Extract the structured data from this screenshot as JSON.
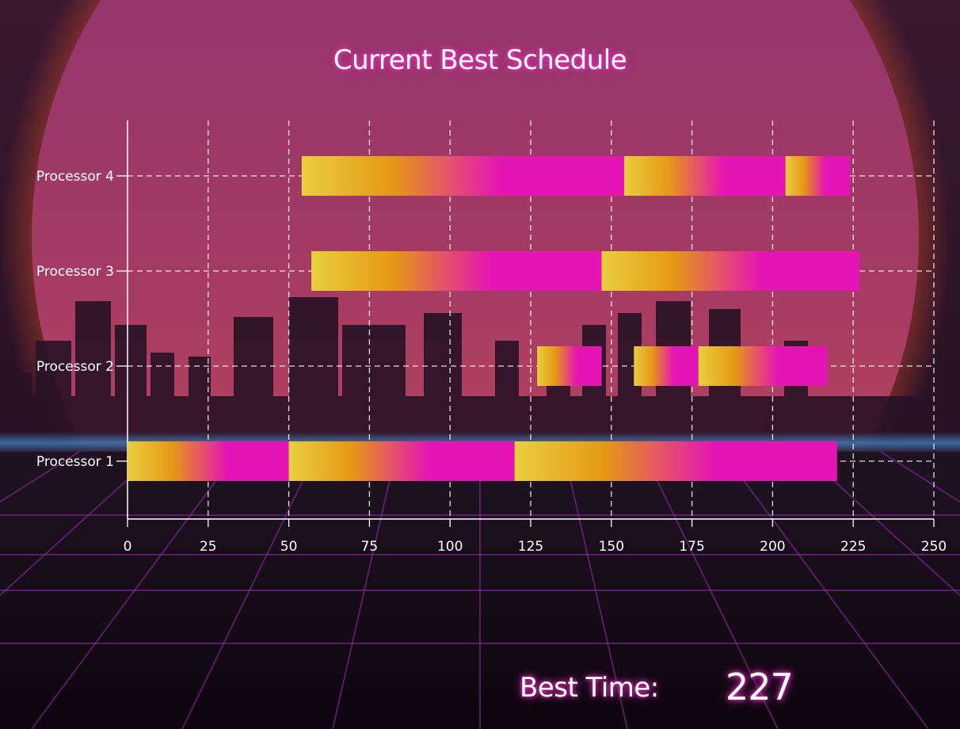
{
  "title": "Current Best Schedule",
  "best_time": {
    "label": "Best Time:",
    "value": "227"
  },
  "colors": {
    "task_start": "#e9cf3e",
    "task_mid": "#e59816",
    "task_end": "#e514b4",
    "axis": "#ffffff",
    "grid": "#ffffff"
  },
  "chart_data": {
    "type": "gantt",
    "title": "Current Best Schedule",
    "categories": [
      "Processor 1",
      "Processor 2",
      "Processor 3",
      "Processor 4"
    ],
    "xlim": [
      0,
      250
    ],
    "xticks": [
      0,
      25,
      50,
      75,
      100,
      125,
      150,
      175,
      200,
      225,
      250
    ],
    "grid": true,
    "tasks": [
      {
        "processor": "Processor 1",
        "start": 0,
        "end": 50
      },
      {
        "processor": "Processor 1",
        "start": 50,
        "end": 120
      },
      {
        "processor": "Processor 1",
        "start": 120,
        "end": 220
      },
      {
        "processor": "Processor 2",
        "start": 127,
        "end": 147
      },
      {
        "processor": "Processor 2",
        "start": 157,
        "end": 177
      },
      {
        "processor": "Processor 2",
        "start": 177,
        "end": 217
      },
      {
        "processor": "Processor 3",
        "start": 57,
        "end": 147
      },
      {
        "processor": "Processor 3",
        "start": 147,
        "end": 227
      },
      {
        "processor": "Processor 4",
        "start": 54,
        "end": 154
      },
      {
        "processor": "Processor 4",
        "start": 154,
        "end": 204
      },
      {
        "processor": "Processor 4",
        "start": 204,
        "end": 224
      }
    ]
  }
}
